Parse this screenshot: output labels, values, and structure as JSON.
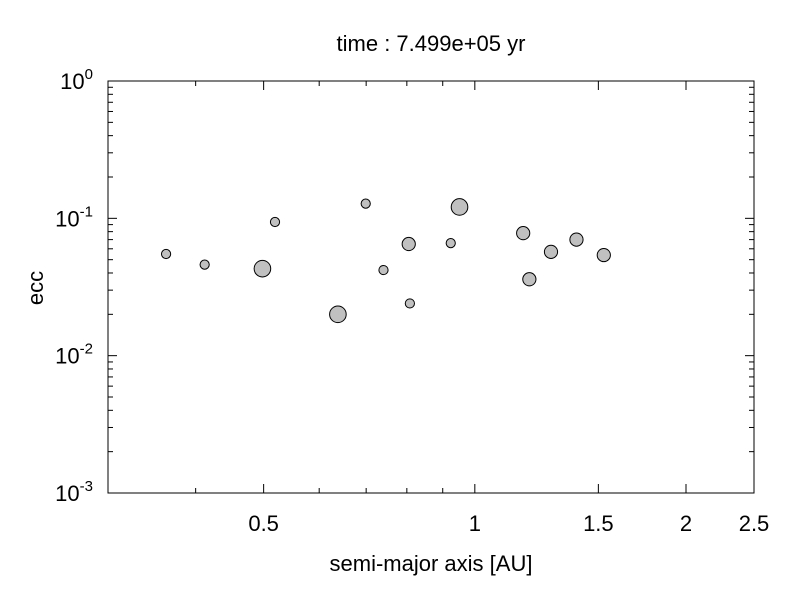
{
  "chart_data": {
    "type": "scatter",
    "title": "time : 7.499e+05 yr",
    "xlabel": "semi-major axis [AU]",
    "ylabel": "ecc",
    "x_scale": "log",
    "y_scale": "log",
    "xlim": [
      0.3,
      2.5
    ],
    "ylim": [
      0.001,
      1
    ],
    "grid": false,
    "legend": "none",
    "marker_fill": "#c0c0c0",
    "marker_stroke": "#000000",
    "x_ticks": [
      {
        "value": 0.5,
        "label": "0.5"
      },
      {
        "value": 1,
        "label": "1"
      },
      {
        "value": 1.5,
        "label": "1.5"
      },
      {
        "value": 2,
        "label": "2"
      },
      {
        "value": 2.5,
        "label": "2.5"
      }
    ],
    "y_ticks": [
      {
        "value": 1,
        "base": "10",
        "exp": "0"
      },
      {
        "value": 0.1,
        "base": "10",
        "exp": "-1"
      },
      {
        "value": 0.01,
        "base": "10",
        "exp": "-2"
      },
      {
        "value": 0.001,
        "base": "10",
        "exp": "-3"
      }
    ],
    "points": [
      {
        "x": 0.363,
        "y": 0.055,
        "size": "small"
      },
      {
        "x": 0.412,
        "y": 0.046,
        "size": "small"
      },
      {
        "x": 0.498,
        "y": 0.043,
        "size": "large"
      },
      {
        "x": 0.519,
        "y": 0.094,
        "size": "small"
      },
      {
        "x": 0.638,
        "y": 0.02,
        "size": "large"
      },
      {
        "x": 0.699,
        "y": 0.128,
        "size": "small"
      },
      {
        "x": 0.741,
        "y": 0.042,
        "size": "small"
      },
      {
        "x": 0.805,
        "y": 0.065,
        "size": "medium"
      },
      {
        "x": 0.808,
        "y": 0.024,
        "size": "small"
      },
      {
        "x": 0.924,
        "y": 0.066,
        "size": "small"
      },
      {
        "x": 0.951,
        "y": 0.121,
        "size": "large"
      },
      {
        "x": 1.172,
        "y": 0.078,
        "size": "medium"
      },
      {
        "x": 1.196,
        "y": 0.036,
        "size": "medium"
      },
      {
        "x": 1.284,
        "y": 0.057,
        "size": "medium"
      },
      {
        "x": 1.396,
        "y": 0.07,
        "size": "medium"
      },
      {
        "x": 1.527,
        "y": 0.054,
        "size": "medium"
      }
    ]
  }
}
